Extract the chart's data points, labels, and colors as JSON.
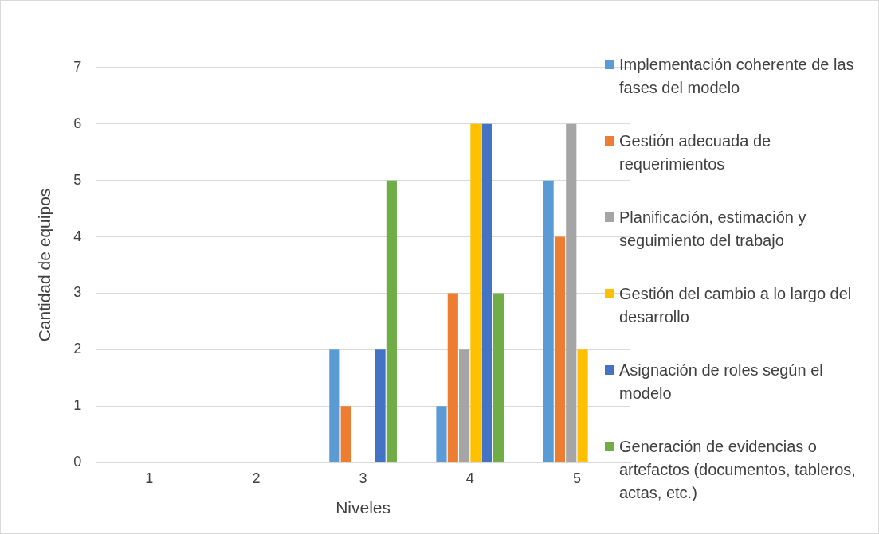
{
  "chart_data": {
    "type": "bar",
    "xlabel": "Niveles",
    "ylabel": "Cantidad de equipos",
    "categories": [
      "1",
      "2",
      "3",
      "4",
      "5"
    ],
    "series": [
      {
        "name": "Implementación coherente de las fases del modelo",
        "color": "#5b9bd5",
        "values": [
          0,
          0,
          2,
          1,
          5
        ]
      },
      {
        "name": "Gestión adecuada de requerimientos",
        "color": "#ed7d31",
        "values": [
          0,
          0,
          1,
          3,
          4
        ]
      },
      {
        "name": "Planificación, estimación y seguimiento del trabajo",
        "color": "#a5a5a5",
        "values": [
          0,
          0,
          0,
          2,
          6
        ]
      },
      {
        "name": "Gestión del cambio a lo largo del desarrollo",
        "color": "#ffc000",
        "values": [
          0,
          0,
          0,
          6,
          2
        ]
      },
      {
        "name": "Asignación de roles según el modelo",
        "color": "#4472c4",
        "values": [
          0,
          0,
          2,
          6,
          0
        ]
      },
      {
        "name": "Generación de evidencias o artefactos (documentos, tableros, actas, etc.)",
        "color": "#70ad47",
        "values": [
          0,
          0,
          5,
          3,
          0
        ]
      }
    ],
    "ylim": [
      0,
      7
    ],
    "yticks": [
      0,
      1,
      2,
      3,
      4,
      5,
      6,
      7
    ],
    "grid": "y",
    "legend": "right"
  }
}
